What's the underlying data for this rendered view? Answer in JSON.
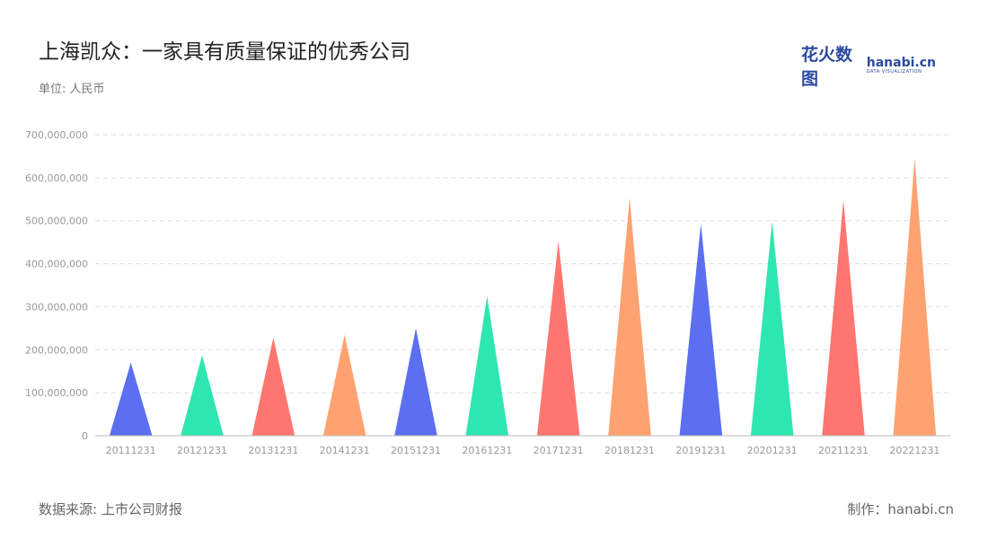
{
  "header": {
    "title": "上海凯众：一家具有质量保证的优秀公司",
    "unit": "单位: 人民币"
  },
  "logo": {
    "cn": "花火数图",
    "en": "hanabi.cn",
    "sub": "DATA VISUALIZATION"
  },
  "footer": {
    "source": "数据来源: 上市公司财报",
    "credit": "制作：hanabi.cn"
  },
  "colors": {
    "palette": [
      "#5b6ff0",
      "#2ee6b0",
      "#ff7670",
      "#ffa271"
    ],
    "grid": "#dddddd",
    "axis": "#bbbbbb"
  },
  "chart_data": {
    "type": "bar",
    "bar_shape": "triangle",
    "categories": [
      "20111231",
      "20121231",
      "20131231",
      "20141231",
      "20151231",
      "20161231",
      "20171231",
      "20181231",
      "20191231",
      "20201231",
      "20211231",
      "20221231"
    ],
    "values": [
      170000000,
      187000000,
      228000000,
      235000000,
      250000000,
      325000000,
      452000000,
      553000000,
      493000000,
      498000000,
      548000000,
      645000000
    ],
    "ylim": [
      0,
      700000000
    ],
    "yticks": [
      0,
      100000000,
      200000000,
      300000000,
      400000000,
      500000000,
      600000000,
      700000000
    ],
    "ytick_labels": [
      "0",
      "100,000,000",
      "200,000,000",
      "300,000,000",
      "400,000,000",
      "500,000,000",
      "600,000,000",
      "700,000,000"
    ],
    "grid": true
  }
}
